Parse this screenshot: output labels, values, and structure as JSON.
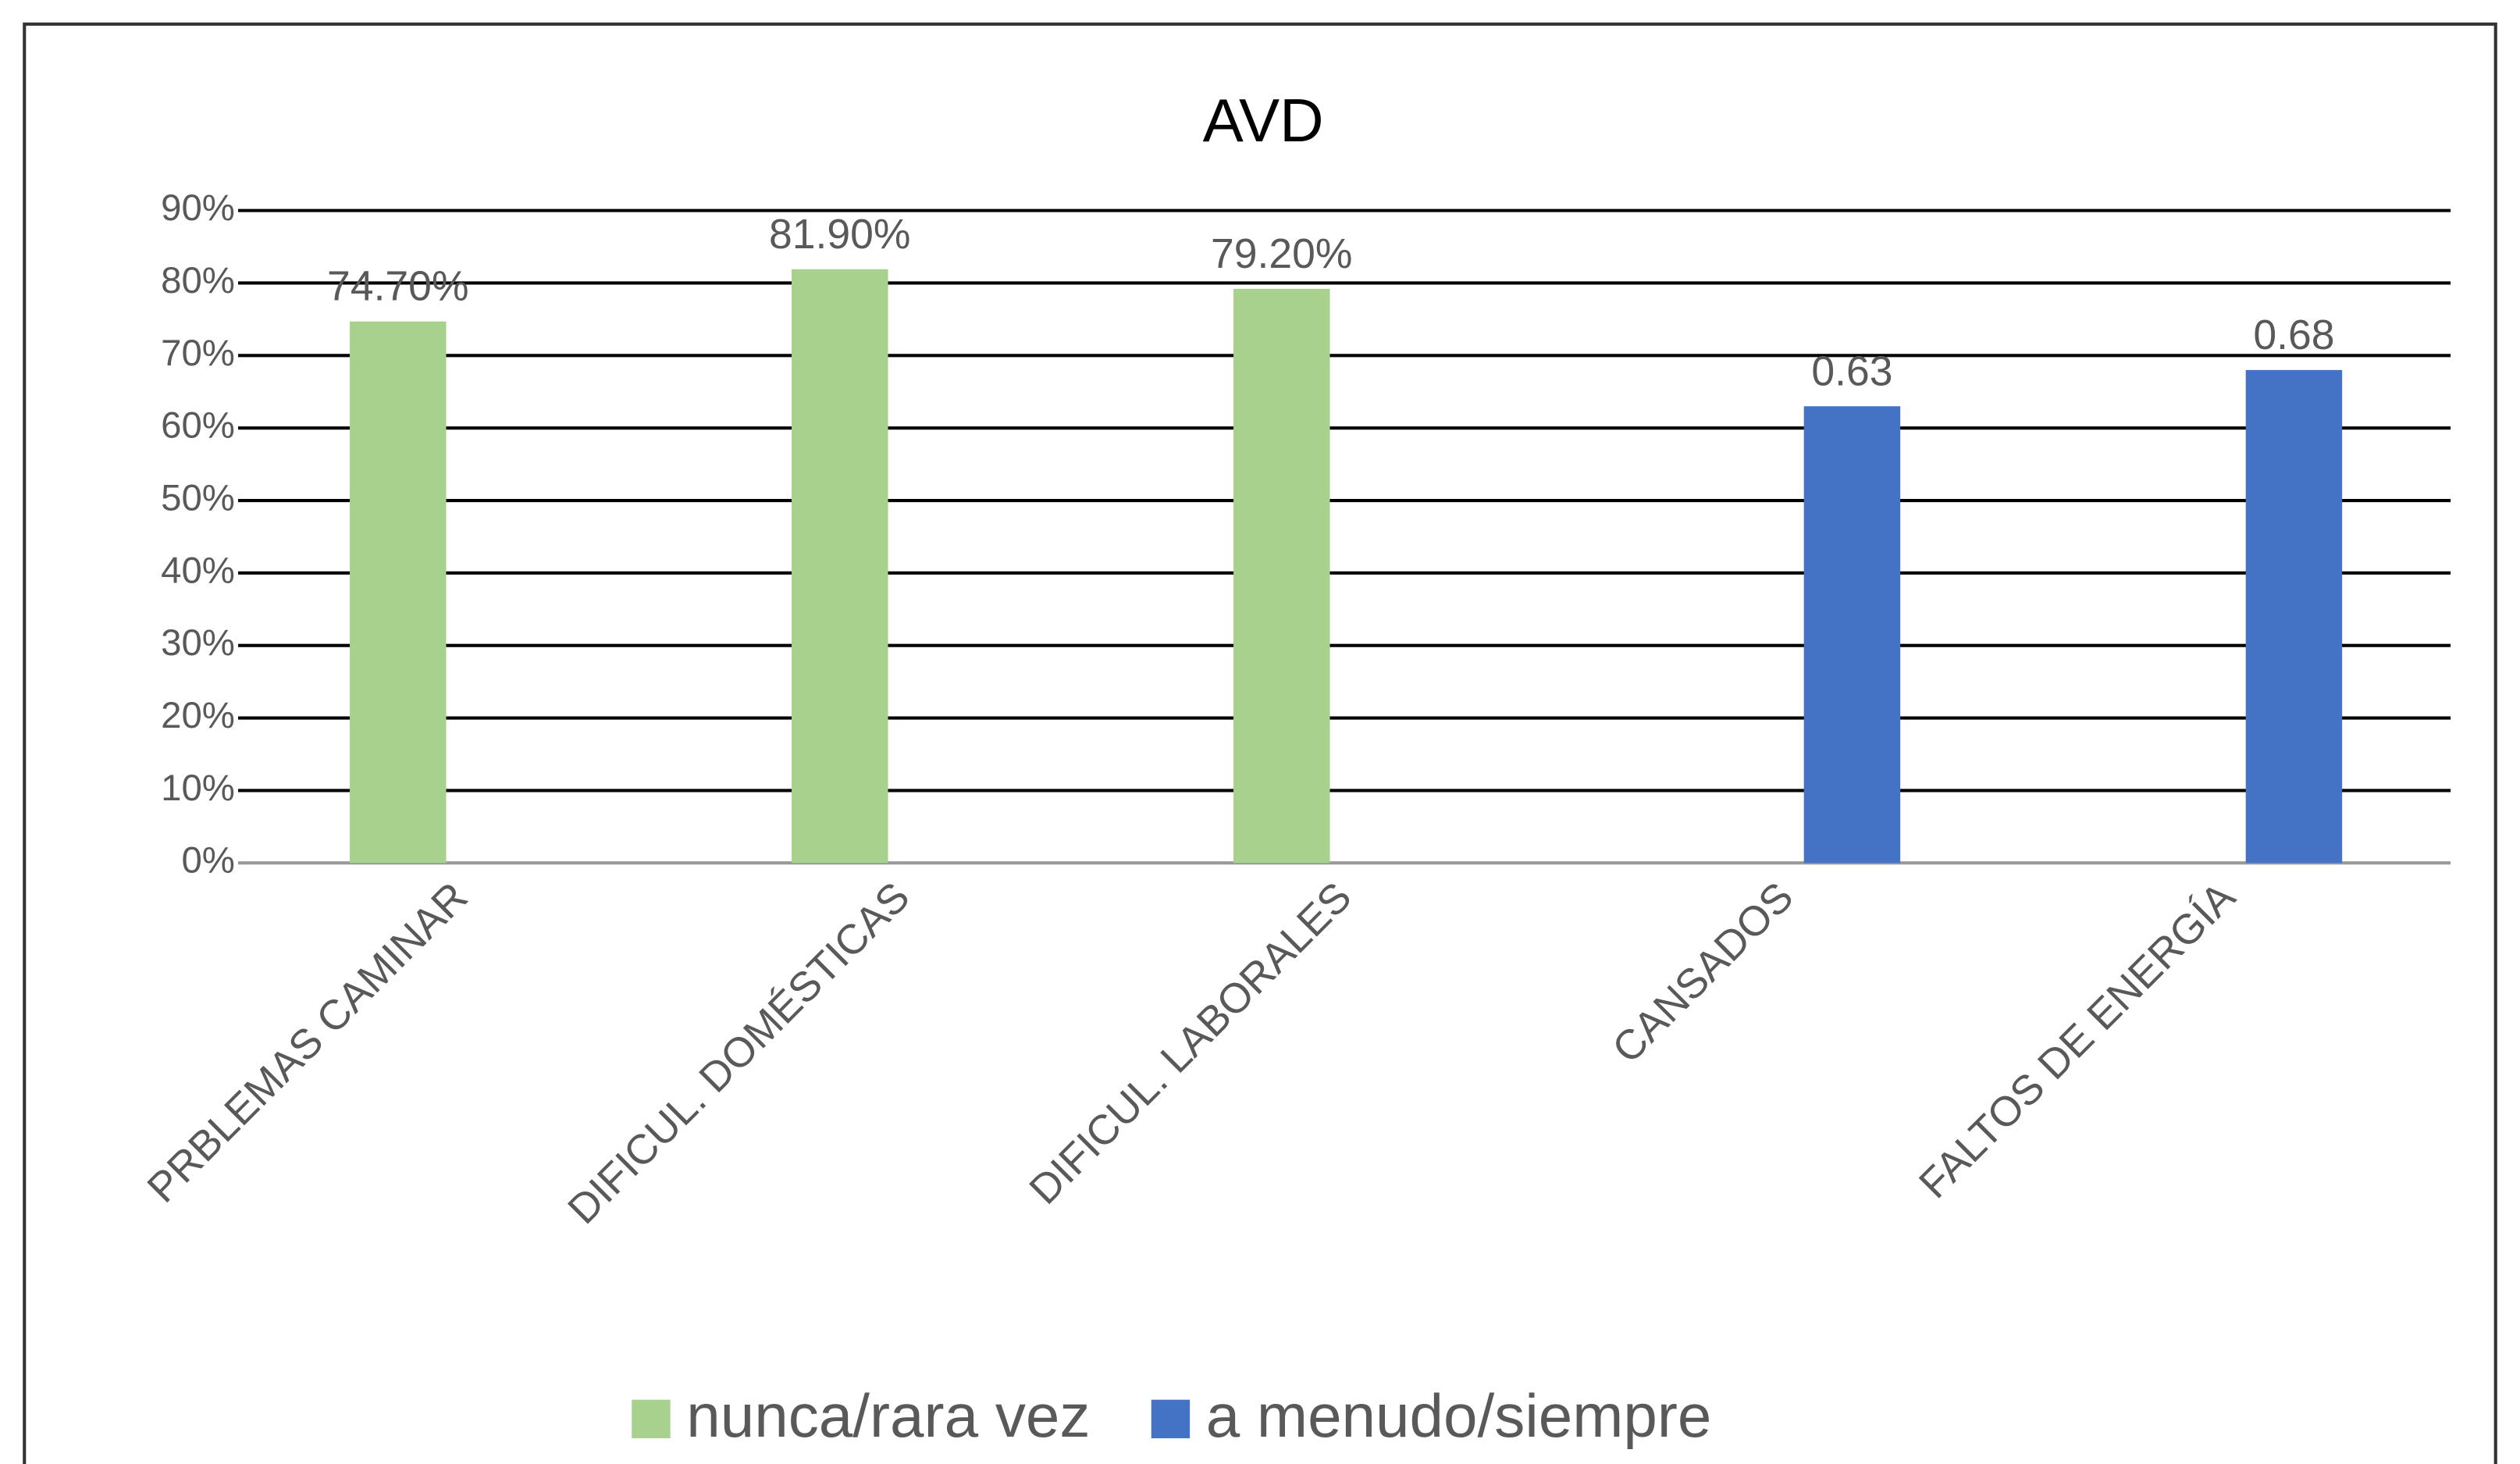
{
  "chart_data": {
    "type": "bar",
    "title": "AVD",
    "categories": [
      "PRBLEMAS CAMINAR",
      "DIFICUL. DOMÉSTICAS",
      "DIFICUL. LABORALES",
      "CANSADOS",
      "FALTOS DE ENERGÍA"
    ],
    "series": [
      {
        "name": "nunca/rara vez",
        "color": "#a9d18e",
        "values": [
          74.7,
          81.9,
          79.2,
          null,
          null
        ],
        "value_labels": [
          "74.70%",
          "81.90%",
          "79.20%",
          null,
          null
        ]
      },
      {
        "name": "a menudo/siempre",
        "color": "#4472c4",
        "values": [
          null,
          null,
          null,
          63,
          68
        ],
        "value_labels": [
          null,
          null,
          null,
          "0.63",
          "0.68"
        ]
      }
    ],
    "ylim": [
      0,
      90
    ],
    "yticks": [
      {
        "value": 0,
        "label": "0%"
      },
      {
        "value": 10,
        "label": "10%"
      },
      {
        "value": 20,
        "label": "20%"
      },
      {
        "value": 30,
        "label": "30%"
      },
      {
        "value": 40,
        "label": "40%"
      },
      {
        "value": 50,
        "label": "50%"
      },
      {
        "value": 60,
        "label": "60%"
      },
      {
        "value": 70,
        "label": "70%"
      },
      {
        "value": 80,
        "label": "80%"
      },
      {
        "value": 90,
        "label": "90%"
      }
    ],
    "grid": true,
    "legend": "bottom"
  }
}
